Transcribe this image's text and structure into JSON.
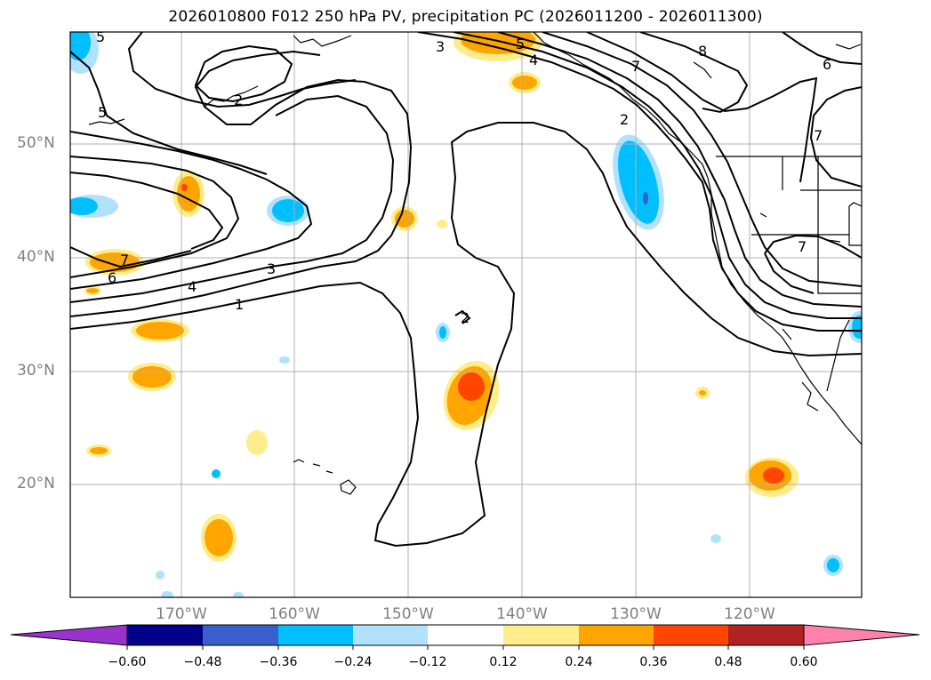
{
  "title": "2026010800 F012 250 hPa PV, precipitation PC (2026011200 - 2026011300)",
  "latitude_labels": [
    "50°N",
    "40°N",
    "30°N",
    "20°N"
  ],
  "longitude_labels": [
    "170°W",
    "160°W",
    "150°W",
    "140°W",
    "130°W",
    "120°W"
  ],
  "colorbar": {
    "ticks": [
      "−0.60",
      "−0.48",
      "−0.36",
      "−0.24",
      "−0.12",
      "0.12",
      "0.24",
      "0.36",
      "0.48",
      "0.60"
    ],
    "colors": [
      "#9a32cd",
      "#00008b",
      "#3a5fcd",
      "#00bfff",
      "#b0e2ff",
      "#ffffff",
      "#ffec8b",
      "#ffa500",
      "#ff4500",
      "#b22222",
      "#ff82ab"
    ]
  },
  "pv_contour_labels": [
    "5",
    "5",
    "2",
    "3",
    "5",
    "4",
    "7",
    "8",
    "6",
    "7",
    "6",
    "4",
    "3",
    "1",
    "2",
    "2",
    "7",
    "7"
  ],
  "colors": {
    "pos_light": "#ffec8b",
    "pos_mid": "#ffa500",
    "pos_high": "#ff4500",
    "neg_light": "#b0e2ff",
    "neg_mid": "#00bfff",
    "neg_high": "#3a5fcd",
    "neg_max": "#9a32cd",
    "grid": "#b0b0b0",
    "axis_text": "#808080"
  }
}
